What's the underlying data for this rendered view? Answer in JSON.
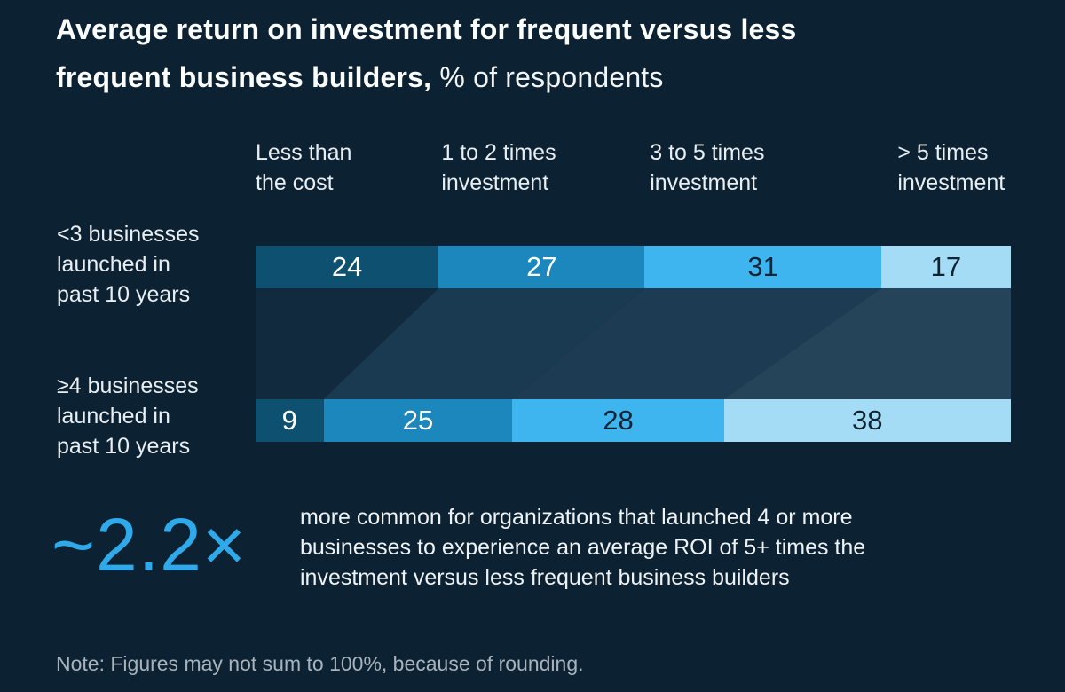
{
  "title": {
    "line1_bold": "Average return on investment for frequent versus less",
    "line2_bold": "frequent business builders,",
    "line2_regular": " % of respondents"
  },
  "headers": [
    {
      "line1": "Less than",
      "line2": "the cost"
    },
    {
      "line1": "1 to 2 times",
      "line2": "investment"
    },
    {
      "line1": "3 to 5 times",
      "line2": "investment"
    },
    {
      "line1": "> 5 times",
      "line2": "investment"
    }
  ],
  "rows": [
    {
      "label_lines": [
        "<3 businesses",
        "launched in",
        "past 10 years"
      ]
    },
    {
      "label_lines": [
        "≥4 businesses",
        "launched in",
        "past 10 years"
      ]
    }
  ],
  "callout": {
    "value": "~2.2×",
    "line1": "more common for organizations that launched 4 or more",
    "line2": "businesses to experience an average ROI of 5+ times the",
    "line3": "investment versus less frequent business builders"
  },
  "note": "Note: Figures may not sum to 100%, because of rounding.",
  "colors": {
    "background": "#0c2232",
    "accent": "#2fa9ea",
    "title_text": "#fdfefe",
    "body_text": "#e9eef2",
    "note_text": "#a9b3bc"
  },
  "chart_data": {
    "type": "bar",
    "variant": "horizontal_stacked_flow",
    "title": "Average return on investment for frequent versus less frequent business builders, % of respondents",
    "unit": "% of respondents",
    "categories": [
      "Less than the cost",
      "1 to 2 times investment",
      "3 to 5 times investment",
      "> 5 times investment"
    ],
    "series": [
      {
        "name": "<3 businesses launched in past 10 years",
        "values": [
          24,
          27,
          31,
          17
        ]
      },
      {
        "name": "≥4 businesses launched in past 10 years",
        "values": [
          9,
          25,
          28,
          38
        ]
      }
    ],
    "segment_colors": [
      "#0d5070",
      "#1b87bd",
      "#3fb5f0",
      "#a5dcf5"
    ],
    "segment_label_colors": [
      "#ffffff",
      "#ffffff",
      "#0e2433",
      "#0e2433"
    ],
    "connector_colors": [
      "#122a3d",
      "#1a3a51",
      "#1d3c53",
      "#264459"
    ],
    "annotation": "~2.2× more common for organizations that launched 4 or more businesses to experience an average ROI of 5+ times the investment versus less frequent business builders",
    "note": "Note: Figures may not sum to 100%, because of rounding.",
    "legend_position": "none",
    "grid": false
  }
}
